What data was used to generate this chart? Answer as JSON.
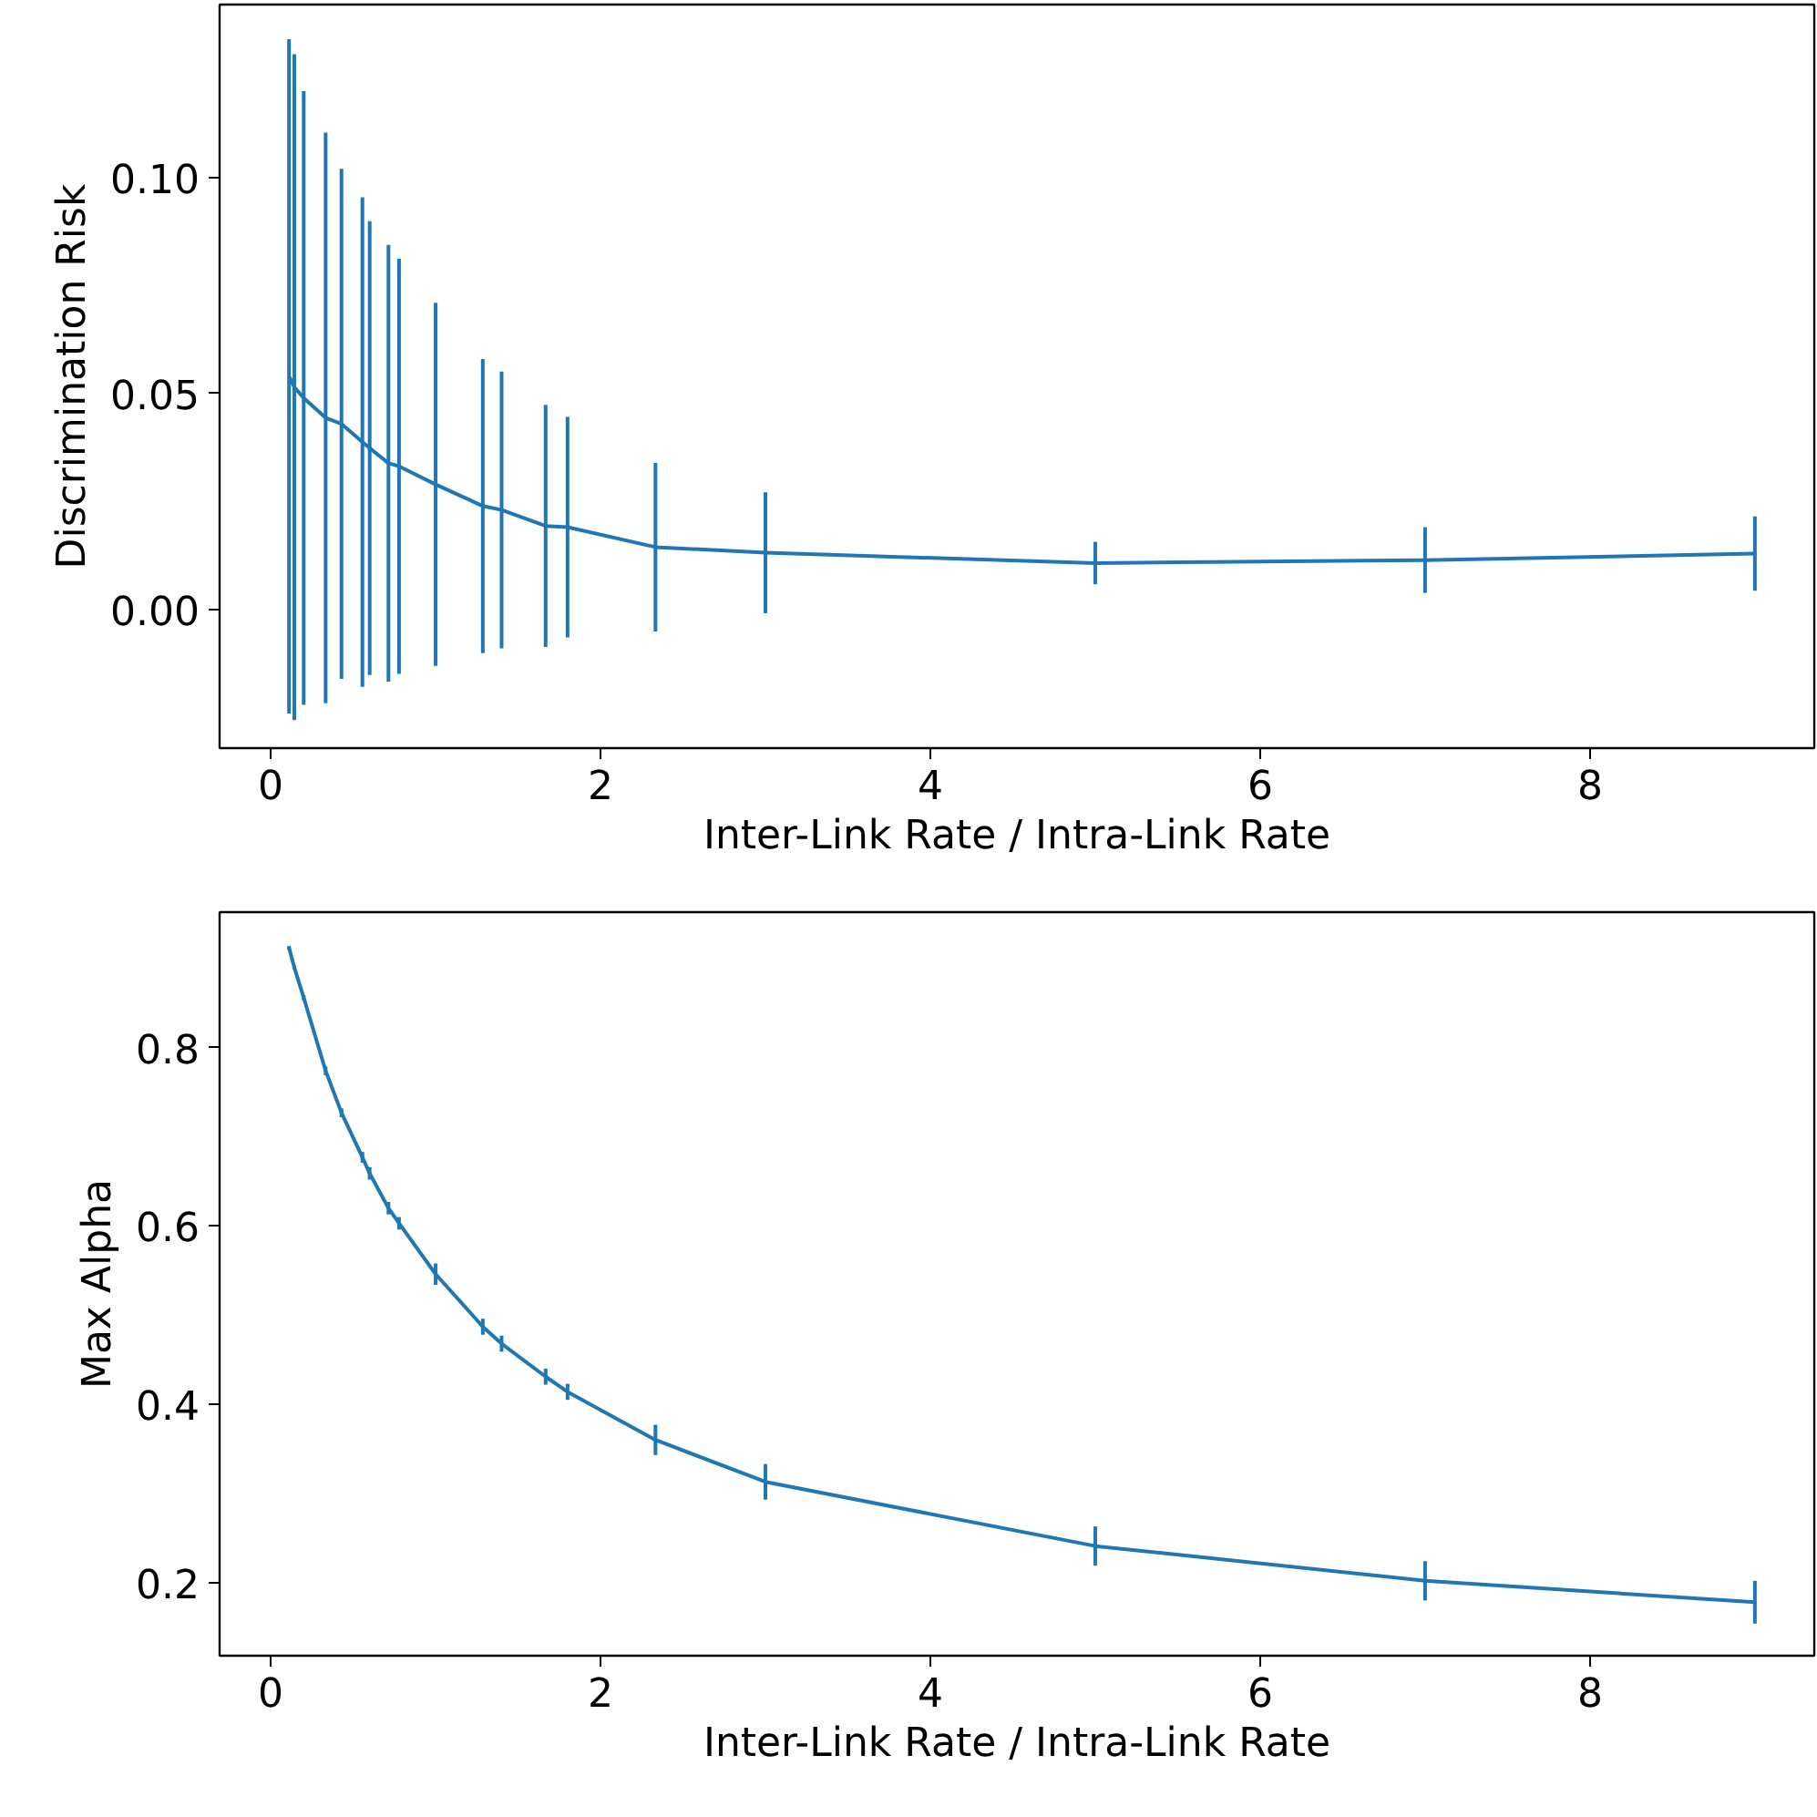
{
  "chart_data": [
    {
      "type": "line",
      "xlabel": "Inter-Link Rate / Intra-Link Rate",
      "ylabel": "Discrimination Risk",
      "x": [
        0.111,
        0.143,
        0.2,
        0.333,
        0.429,
        0.556,
        0.6,
        0.714,
        0.778,
        1,
        1.286,
        1.4,
        1.667,
        1.8,
        2.333,
        3,
        5,
        7,
        9
      ],
      "series": [
        {
          "color": "#1f77b4",
          "values": [
            0.054,
            0.0515,
            0.049,
            0.0444,
            0.043,
            0.0388,
            0.0374,
            0.0339,
            0.0332,
            0.029,
            0.024,
            0.0231,
            0.0194,
            0.0191,
            0.0145,
            0.0132,
            0.0108,
            0.0115,
            0.013
          ],
          "errors": [
            0.078,
            0.077,
            0.071,
            0.066,
            0.059,
            0.0566,
            0.0525,
            0.0505,
            0.048,
            0.042,
            0.034,
            0.032,
            0.028,
            0.0255,
            0.0195,
            0.014,
            0.0049,
            0.0076,
            0.0086
          ]
        }
      ],
      "xlim": [
        -0.31,
        9.36
      ],
      "ylim": [
        -0.032,
        0.14
      ],
      "xticks": [
        0,
        2,
        4,
        6,
        8
      ],
      "yticks": [
        {
          "value": 0,
          "label": "0.00"
        },
        {
          "value": 0.05,
          "label": "0.05"
        },
        {
          "value": 0.1,
          "label": "0.10"
        }
      ],
      "grid": false,
      "marker": "none",
      "line_style": "solid"
    },
    {
      "type": "line",
      "xlabel": "Inter-Link Rate / Intra-Link Rate",
      "ylabel": "Max Alpha",
      "x": [
        0.111,
        0.143,
        0.2,
        0.333,
        0.429,
        0.556,
        0.6,
        0.714,
        0.778,
        1,
        1.286,
        1.4,
        1.667,
        1.8,
        2.333,
        3,
        5,
        7,
        9
      ],
      "series": [
        {
          "color": "#1f77b4",
          "values": [
            0.912,
            0.89,
            0.856,
            0.774,
            0.727,
            0.677,
            0.659,
            0.62,
            0.603,
            0.546,
            0.487,
            0.468,
            0.431,
            0.414,
            0.36,
            0.313,
            0.241,
            0.202,
            0.178
          ],
          "errors": [
            0.002,
            0.002,
            0.003,
            0.005,
            0.005,
            0.006,
            0.007,
            0.007,
            0.007,
            0.012,
            0.009,
            0.009,
            0.009,
            0.009,
            0.017,
            0.02,
            0.022,
            0.022,
            0.024
          ]
        }
      ],
      "xlim": [
        -0.31,
        9.36
      ],
      "ylim": [
        0.118,
        0.952
      ],
      "xticks": [
        0,
        2,
        4,
        6,
        8
      ],
      "yticks": [
        0.2,
        0.4,
        0.6,
        0.8
      ],
      "grid": false,
      "marker": "none",
      "line_style": "solid"
    }
  ]
}
